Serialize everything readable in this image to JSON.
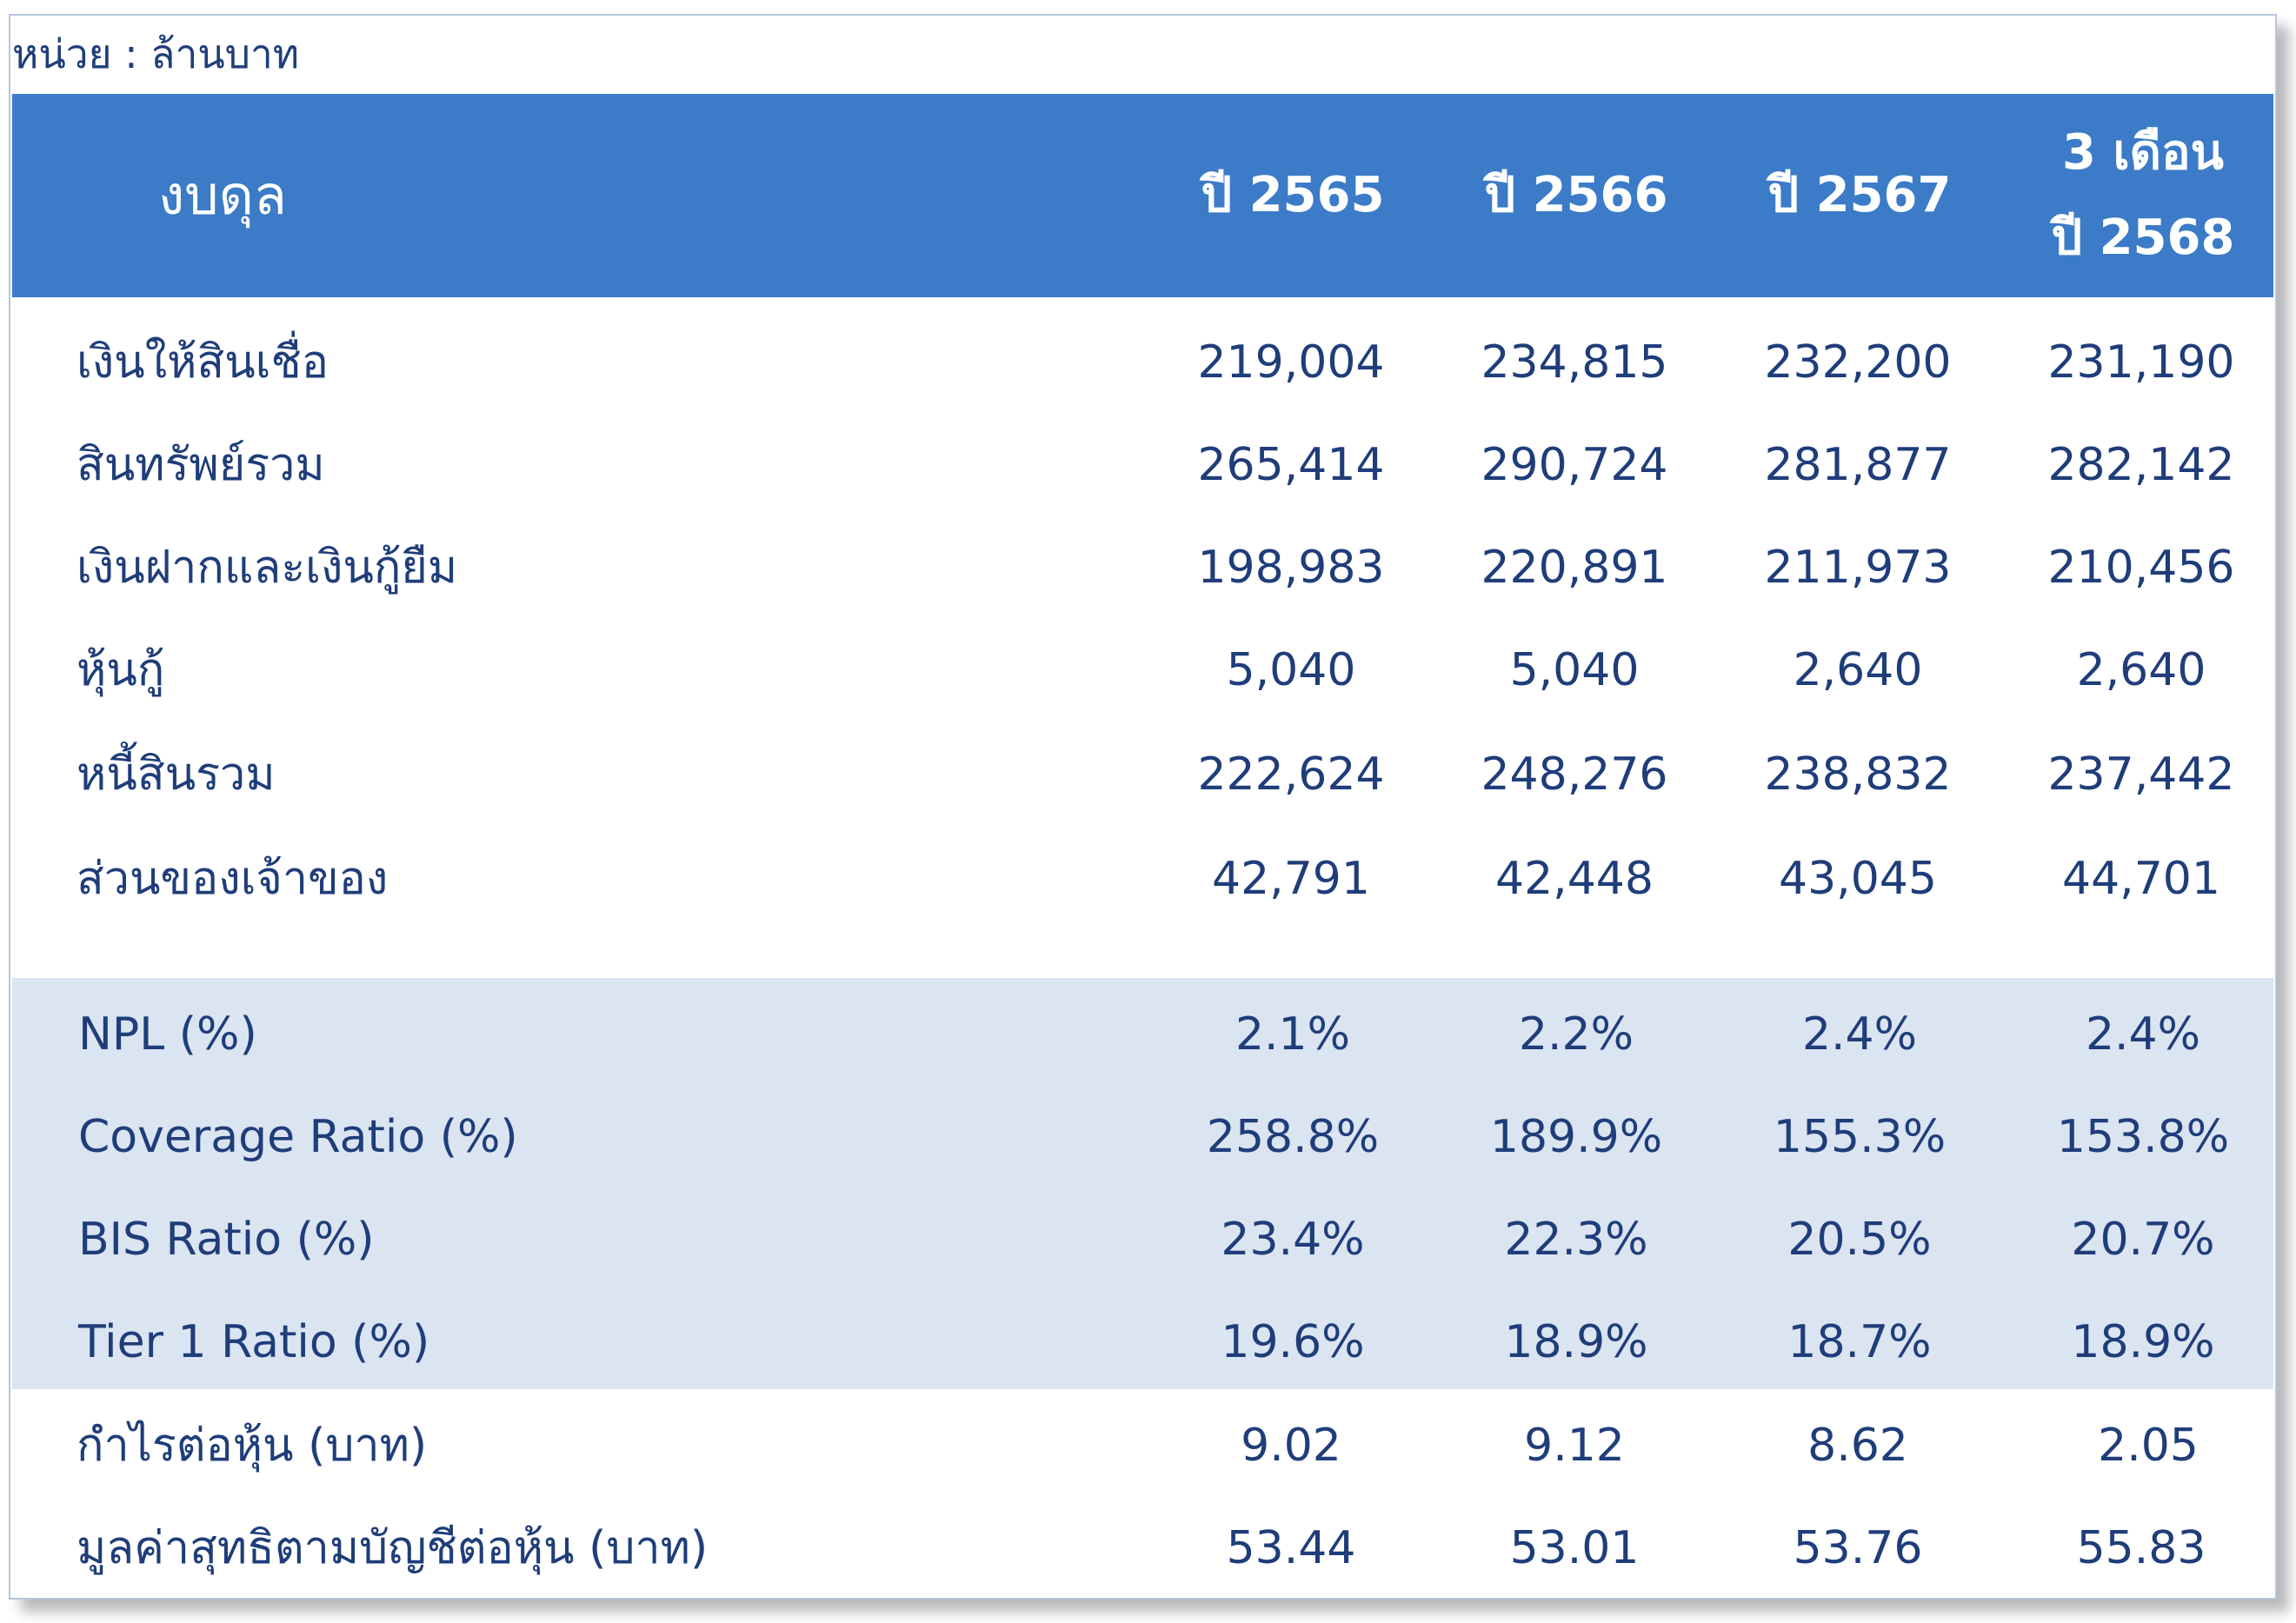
{
  "unit_label": "หน่วย : ล้านบาท",
  "header": {
    "title": "งบดุล",
    "columns": [
      {
        "line1": "ปี 2565"
      },
      {
        "line1": "ปี 2566"
      },
      {
        "line1": "ปี 2567"
      },
      {
        "line1": "3 เดือน",
        "line2": "ปี 2568"
      }
    ]
  },
  "balance_rows": [
    {
      "label": "เงินให้สินเชื่อ",
      "values": [
        "219,004",
        "234,815",
        "232,200",
        "231,190"
      ]
    },
    {
      "label": "สินทรัพย์รวม",
      "values": [
        "265,414",
        "290,724",
        "281,877",
        "282,142"
      ]
    },
    {
      "label": "เงินฝากและเงินกู้ยืม",
      "values": [
        "198,983",
        "220,891",
        "211,973",
        "210,456"
      ]
    },
    {
      "label": "หุ้นกู้",
      "values": [
        "5,040",
        "5,040",
        "2,640",
        "2,640"
      ]
    },
    {
      "label": "หนี้สินรวม",
      "values": [
        "222,624",
        "248,276",
        "238,832",
        "237,442"
      ]
    },
    {
      "label": "ส่วนของเจ้าของ",
      "values": [
        "42,791",
        "42,448",
        "43,045",
        "44,701"
      ]
    }
  ],
  "ratio_rows": [
    {
      "label": "NPL (%)",
      "values": [
        "2.1%",
        "2.2%",
        "2.4%",
        "2.4%"
      ]
    },
    {
      "label": "Coverage Ratio (%)",
      "values": [
        "258.8%",
        "189.9%",
        "155.3%",
        "153.8%"
      ]
    },
    {
      "label": "BIS Ratio (%)",
      "values": [
        "23.4%",
        "22.3%",
        "20.5%",
        "20.7%"
      ]
    },
    {
      "label": "Tier 1 Ratio (%)",
      "values": [
        "19.6%",
        "18.9%",
        "18.7%",
        "18.9%"
      ]
    }
  ],
  "per_share_rows": [
    {
      "label": "กำไรต่อหุ้น (บาท)",
      "values": [
        "9.02",
        "9.12",
        "8.62",
        "2.05"
      ]
    },
    {
      "label": "มูลค่าสุทธิตามบัญชีต่อหุ้น (บาท)",
      "values": [
        "53.44",
        "53.01",
        "53.76",
        "55.83"
      ]
    }
  ],
  "colors": {
    "header_bg": "#3b7bc8",
    "ratio_bg": "#dbe4f1",
    "text": "#1f3d7a"
  }
}
